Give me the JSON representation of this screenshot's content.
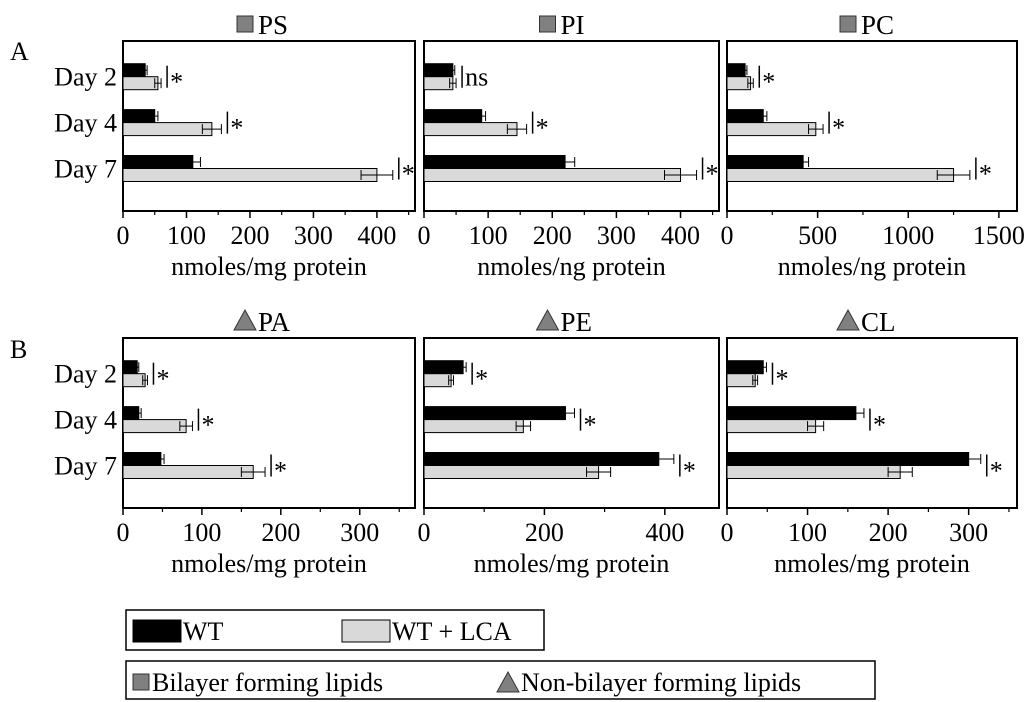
{
  "panel_labels": [
    "A",
    "B"
  ],
  "colors": {
    "wt": "#000000",
    "wt_lca": "#d9d9d9",
    "bilayer_marker": "#808080",
    "nonbilayer_marker": "#808080"
  },
  "legend": {
    "wt_label": "WT",
    "wt_lca_label": "WT + LCA",
    "bilayer_label": "Bilayer forming lipids",
    "nonbilayer_label": "Non-bilayer forming lipids"
  },
  "chart_data": [
    {
      "type": "bar",
      "orientation": "horizontal",
      "panel": "A",
      "title": "PS",
      "marker": "square",
      "categories": [
        "Day 2",
        "Day 4",
        "Day 7"
      ],
      "xlabel": "nmoles/mg protein",
      "xlim": [
        0,
        460
      ],
      "xticks": [
        0,
        100,
        200,
        300,
        400
      ],
      "grid": false,
      "series": [
        {
          "name": "WT",
          "values": [
            35,
            50,
            110
          ],
          "errors": [
            3,
            5,
            12
          ]
        },
        {
          "name": "WT + LCA",
          "values": [
            55,
            140,
            400
          ],
          "errors": [
            5,
            15,
            25
          ]
        }
      ],
      "annotations": [
        "*",
        "*",
        "*"
      ]
    },
    {
      "type": "bar",
      "orientation": "horizontal",
      "panel": "A",
      "title": "PI",
      "marker": "square",
      "categories": [
        "Day 2",
        "Day 4",
        "Day 7"
      ],
      "xlabel": "nmoles/ng protein",
      "xlim": [
        0,
        460
      ],
      "xticks": [
        0,
        100,
        200,
        300,
        400
      ],
      "grid": false,
      "series": [
        {
          "name": "WT",
          "values": [
            45,
            90,
            220
          ],
          "errors": [
            3,
            6,
            15
          ]
        },
        {
          "name": "WT + LCA",
          "values": [
            45,
            145,
            400
          ],
          "errors": [
            5,
            15,
            25
          ]
        }
      ],
      "annotations": [
        "ns",
        "*",
        "*"
      ]
    },
    {
      "type": "bar",
      "orientation": "horizontal",
      "panel": "A",
      "title": "PC",
      "marker": "square",
      "categories": [
        "Day 2",
        "Day 4",
        "Day 7"
      ],
      "xlabel": "nmoles/ng protein",
      "xlim": [
        0,
        1600
      ],
      "xticks": [
        0,
        500,
        1000,
        1500
      ],
      "grid": false,
      "series": [
        {
          "name": "WT",
          "values": [
            100,
            200,
            420
          ],
          "errors": [
            10,
            20,
            30
          ]
        },
        {
          "name": "WT + LCA",
          "values": [
            130,
            490,
            1250
          ],
          "errors": [
            15,
            40,
            90
          ]
        }
      ],
      "annotations": [
        "*",
        "*",
        "*"
      ]
    },
    {
      "type": "bar",
      "orientation": "horizontal",
      "panel": "B",
      "title": "PA",
      "marker": "triangle",
      "categories": [
        "Day 2",
        "Day 4",
        "Day 7"
      ],
      "xlabel": "nmoles/mg protein",
      "xlim": [
        0,
        370
      ],
      "xticks": [
        0,
        100,
        200,
        300
      ],
      "grid": false,
      "series": [
        {
          "name": "WT",
          "values": [
            18,
            20,
            48
          ],
          "errors": [
            2,
            3,
            4
          ]
        },
        {
          "name": "WT + LCA",
          "values": [
            28,
            80,
            165
          ],
          "errors": [
            3,
            8,
            15
          ]
        }
      ],
      "annotations": [
        "*",
        "*",
        "*"
      ]
    },
    {
      "type": "bar",
      "orientation": "horizontal",
      "panel": "B",
      "title": "PE",
      "marker": "triangle",
      "categories": [
        "Day 2",
        "Day 4",
        "Day 7"
      ],
      "xlabel": "nmoles/mg protein",
      "xlim": [
        0,
        490
      ],
      "xticks": [
        0,
        200,
        400
      ],
      "grid": false,
      "series": [
        {
          "name": "WT",
          "values": [
            65,
            235,
            390
          ],
          "errors": [
            5,
            15,
            25
          ]
        },
        {
          "name": "WT + LCA",
          "values": [
            45,
            165,
            290
          ],
          "errors": [
            4,
            12,
            20
          ]
        }
      ],
      "annotations": [
        "*",
        "*",
        "*"
      ]
    },
    {
      "type": "bar",
      "orientation": "horizontal",
      "panel": "B",
      "title": "CL",
      "marker": "triangle",
      "categories": [
        "Day 2",
        "Day 4",
        "Day 7"
      ],
      "xlabel": "nmoles/mg protein",
      "xlim": [
        0,
        360
      ],
      "xticks": [
        0,
        100,
        200,
        300
      ],
      "grid": false,
      "series": [
        {
          "name": "WT",
          "values": [
            45,
            160,
            300
          ],
          "errors": [
            4,
            10,
            15
          ]
        },
        {
          "name": "WT + LCA",
          "values": [
            35,
            110,
            215
          ],
          "errors": [
            3,
            10,
            15
          ]
        }
      ],
      "annotations": [
        "*",
        "*",
        "*"
      ]
    }
  ]
}
